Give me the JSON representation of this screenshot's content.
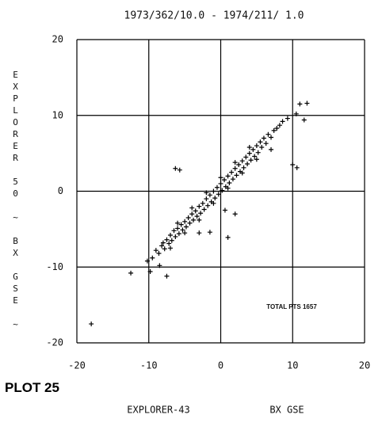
{
  "chart_data": {
    "type": "scatter",
    "title": "1973/362/10.0 - 1974/211/ 1.0",
    "ylabel": "EXPLORER 50 ~ BX GSE ~",
    "xlabel": "EXPLORER-43",
    "xlabel_quantity": "BX GSE",
    "plot_label": "PLOT 25",
    "annotation": "TOTAL PTS 1657",
    "color": "#000000",
    "xlim": [
      -20,
      20
    ],
    "ylim": [
      -20,
      20
    ],
    "xticks": [
      -20,
      -10,
      0,
      10,
      20
    ],
    "yticks": [
      -20,
      -10,
      0,
      10,
      20
    ],
    "grid": true,
    "x": [
      -9.5,
      -9,
      -8.6,
      -8.2,
      -8,
      -7.8,
      -7.5,
      -7.2,
      -7,
      -6.8,
      -6.5,
      -6.3,
      -6,
      -5.8,
      -5.5,
      -5.3,
      -5,
      -4.8,
      -4.5,
      -4.3,
      -4,
      -3.8,
      -3.5,
      -3.3,
      -3,
      -2.8,
      -2.5,
      -2.3,
      -2,
      -1.8,
      -1.5,
      -1.3,
      -1,
      -0.8,
      -0.5,
      -0.3,
      0,
      0.2,
      0.5,
      0.7,
      1,
      1.2,
      1.5,
      1.7,
      2,
      2.2,
      2.5,
      2.7,
      3,
      3.2,
      3.5,
      3.7,
      4,
      4.2,
      4.5,
      4.7,
      5,
      5.2,
      5.5,
      5.7,
      6,
      6.3,
      6.6,
      7,
      7.4,
      7.8,
      8.2,
      8.6,
      -7,
      -5,
      -3,
      -1,
      1,
      3,
      5,
      -6,
      -4,
      -2,
      0,
      2,
      4,
      -18,
      -12.5,
      -10.2,
      -9.8,
      -7.5,
      -8.5,
      1,
      -1.5,
      -5.7,
      -6.3,
      10,
      10.6,
      9.3,
      11,
      10.5,
      12,
      11.6,
      2,
      7,
      -3,
      0.6
    ],
    "values": [
      -8.8,
      -7.8,
      -8.2,
      -7.2,
      -6.8,
      -7.6,
      -6.4,
      -6.9,
      -5.8,
      -6.5,
      -5.2,
      -6,
      -4.9,
      -5.6,
      -4.4,
      -5.1,
      -4,
      -4.7,
      -3.5,
      -4.2,
      -3,
      -3.8,
      -2.6,
      -3.3,
      -2,
      -2.9,
      -1.6,
      -2.4,
      -1,
      -1.9,
      -0.5,
      -1.4,
      0,
      -0.9,
      0.5,
      -0.4,
      1,
      0.1,
      1.5,
      0.6,
      2,
      1.1,
      2.5,
      1.6,
      3,
      2.1,
      3.5,
      2.6,
      4,
      3.1,
      4.5,
      3.6,
      5,
      4.1,
      5.5,
      4.6,
      6,
      5.1,
      6.5,
      5.8,
      7,
      6.3,
      7.5,
      7.1,
      8,
      8.3,
      8.7,
      9.2,
      -7.5,
      -5.5,
      -3.8,
      -1.6,
      0.4,
      2.4,
      4.2,
      -4.2,
      -2.2,
      -0.2,
      1.8,
      3.8,
      5.8,
      -17.5,
      -10.8,
      -9.2,
      -10.6,
      -11.2,
      -9.8,
      -6.1,
      -5.4,
      2.8,
      3,
      3.5,
      3.1,
      9.6,
      11.5,
      10.2,
      11.6,
      9.4,
      -3,
      5.5,
      -5.5,
      -2.5
    ]
  }
}
